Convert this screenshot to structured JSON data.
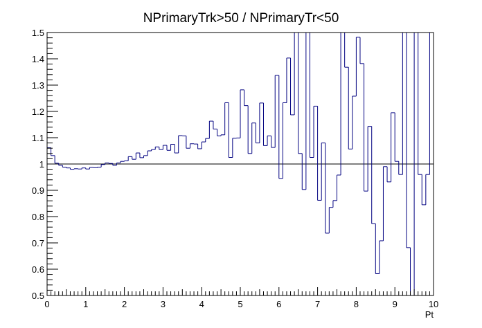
{
  "chart_data": {
    "type": "line",
    "style": "step-histogram",
    "title": "NPrimaryTrk>50 / NPrimaryTr<50",
    "xlabel": "Pt",
    "ylabel": "",
    "xlim": [
      0,
      10
    ],
    "ylim": [
      0.5,
      1.5
    ],
    "x_ticks": [
      "0",
      "1",
      "2",
      "3",
      "4",
      "5",
      "6",
      "7",
      "8",
      "9",
      "10"
    ],
    "y_ticks": [
      "0.5",
      "0.6",
      "0.7",
      "0.8",
      "0.9",
      "1",
      "1.1",
      "1.2",
      "1.3",
      "1.4",
      "1.5"
    ],
    "grid": false,
    "reference_line": 1.0,
    "colors": {
      "series": "#000080",
      "reference": "#000000",
      "axis": "#000000"
    },
    "bin_width": 0.1,
    "series": [
      {
        "x_start": 0.0,
        "values": [
          1.062,
          1.032,
          1.003,
          0.995,
          0.988,
          0.985,
          0.98,
          0.982,
          0.981,
          0.985,
          0.981,
          0.987,
          0.986,
          0.988,
          0.998,
          1.004,
          1.002,
          0.995,
          1.004,
          1.01,
          1.012,
          1.028,
          1.018,
          1.042,
          1.024,
          1.032,
          1.05,
          1.055,
          1.065,
          1.055,
          1.071,
          1.052,
          1.075,
          1.042,
          1.108,
          1.107,
          1.06,
          1.077,
          1.076,
          1.058,
          1.084,
          1.097,
          1.163,
          1.133,
          1.107,
          1.111,
          1.233,
          1.025,
          1.098,
          1.099,
          1.282,
          1.222,
          1.04,
          1.156,
          1.08,
          1.232,
          1.07,
          1.107,
          1.063,
          1.337,
          0.945,
          1.233,
          1.403,
          1.187,
          1.5,
          1.04,
          0.903,
          1.505,
          1.025,
          1.22,
          0.862,
          1.08,
          0.737,
          0.835,
          0.861,
          0.958,
          1.5,
          1.368,
          1.057,
          1.258,
          1.482,
          1.382,
          0.897,
          1.143,
          0.773,
          0.583,
          0.708,
          0.99,
          0.932,
          1.195,
          1.01,
          0.96,
          1.5,
          0.682,
          0.45,
          1.5,
          0.96,
          0.845,
          0.96,
          1.5
        ]
      }
    ]
  }
}
